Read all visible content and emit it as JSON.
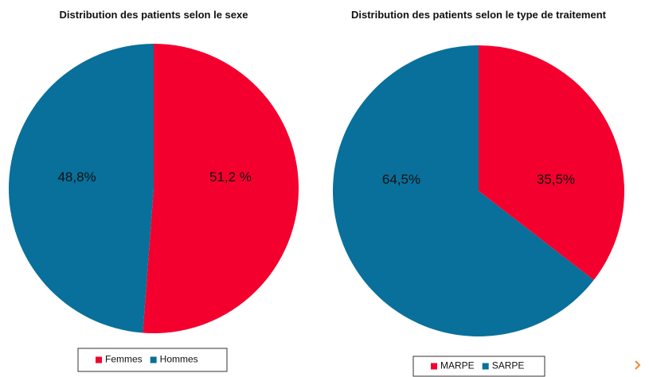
{
  "chart_data": [
    {
      "type": "pie",
      "title": "Distribution des patients selon le sexe",
      "categories": [
        "Femmes",
        "Hommes"
      ],
      "values": [
        51.2,
        48.8
      ],
      "value_labels": [
        "51,2 %",
        "48,8%"
      ],
      "colors": [
        "#f3002e",
        "#08709a"
      ]
    },
    {
      "type": "pie",
      "title": "Distribution des patients selon le type de traitement",
      "categories": [
        "MARPE",
        "SARPE"
      ],
      "values": [
        35.5,
        64.5
      ],
      "value_labels": [
        "35,5%",
        "64,5%"
      ],
      "colors": [
        "#f3002e",
        "#08709a"
      ]
    }
  ]
}
